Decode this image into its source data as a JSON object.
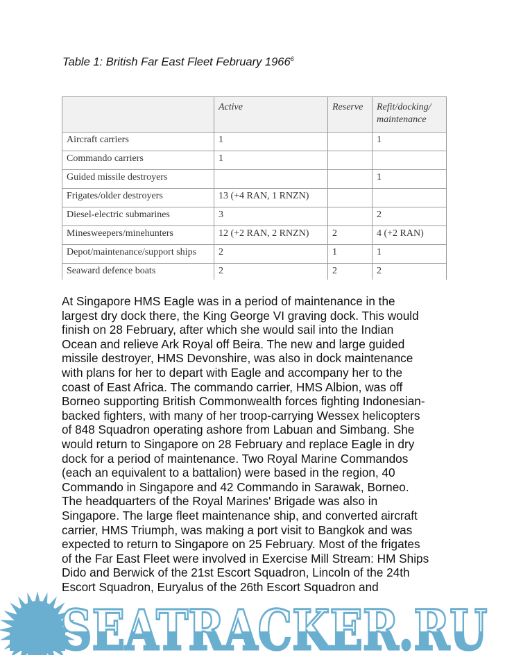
{
  "caption": {
    "text": "Table 1: British Far East Fleet February 1966",
    "footnote": "6"
  },
  "table": {
    "headers": [
      "",
      "Active",
      "Reserve",
      "Refit/docking/ maintenance"
    ],
    "rows": [
      [
        "Aircraft carriers",
        "1",
        "",
        "1"
      ],
      [
        "Commando carriers",
        "1",
        "",
        ""
      ],
      [
        "Guided missile destroyers",
        "",
        "",
        "1"
      ],
      [
        "Frigates/older destroyers",
        "13 (+4 RAN, 1 RNZN)",
        "",
        ""
      ],
      [
        "Diesel-electric submarines",
        "3",
        "",
        "2"
      ],
      [
        "Minesweepers/minehunters",
        "12 (+2 RAN, 2 RNZN)",
        "2",
        "4 (+2 RAN)"
      ],
      [
        "Depot/maintenance/support ships",
        "2",
        "1",
        "1"
      ],
      [
        "Seaward defence boats",
        "2",
        "2",
        "2"
      ]
    ]
  },
  "body_lines": [
    "At Singapore HMS Eagle was in a period of maintenance in the",
    "largest dry dock there, the King George VI graving dock. This would",
    "finish on 28 February, after which she would sail into the Indian",
    "Ocean and relieve Ark Royal off Beira. The new and large guided",
    "missile destroyer, HMS Devonshire, was also in dock maintenance",
    "with plans for her to depart with Eagle and accompany her to the",
    "coast of East Africa. The commando carrier, HMS Albion, was off",
    "Borneo supporting British Commonwealth forces fighting Indonesian-",
    "backed fighters, with many of her troop-carrying Wessex helicopters",
    "of 848 Squadron operating ashore from Labuan and Simbang. She",
    "would return to Singapore on 28 February and replace Eagle in dry",
    "dock for a period of maintenance. Two Royal Marine Commandos",
    "(each an equivalent to a battalion) were based in the region, 40",
    "Commando in Singapore and 42 Commando in Sarawak, Borneo.",
    "The headquarters of the Royal Marines' Brigade was also in",
    "Singapore. The large fleet maintenance ship, and converted aircraft",
    "carrier, HMS Triumph, was making a port visit to Bangkok and was",
    "expected to return to Singapore on 25 February. Most of the frigates",
    "of the Far East Fleet were involved in Exercise Mill Stream: HM Ships",
    "Dido and Berwick of the 21st Escort Squadron, Lincoln of the 24th",
    "Escort Squadron, Euryalus of the 26th Escort Squadron and"
  ],
  "watermark": {
    "text": "SEATRACKER.RU",
    "color": "#6aaed0",
    "icon": "sun-icon"
  }
}
